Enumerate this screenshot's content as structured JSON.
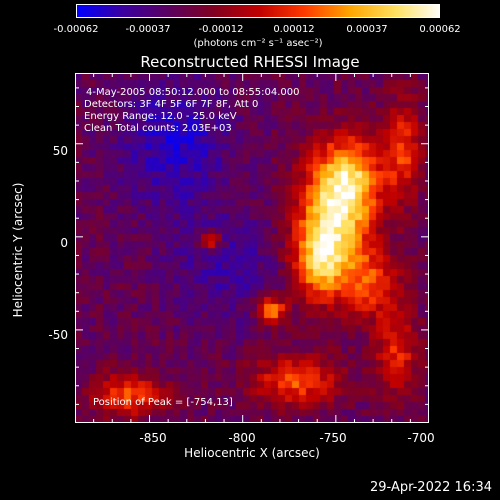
{
  "colorbar": {
    "stops": [
      "#0000ff",
      "#3a00a0",
      "#5a0060",
      "#800020",
      "#c00000",
      "#ff3a00",
      "#ffa500",
      "#ffe060",
      "#ffffff"
    ],
    "tick_labels": [
      "-0.00062",
      "-0.00037",
      "-0.00012",
      "0.00012",
      "0.00037",
      "0.00062"
    ],
    "unit_label": "(photons cm⁻² s⁻¹ asec⁻²)"
  },
  "chart_data": {
    "type": "heatmap",
    "title": "Reconstructed RHESSI Image",
    "xlabel": "Heliocentric X (arcsec)",
    "ylabel": "Heliocentric Y (arcsec)",
    "xlim": [
      -890,
      -700
    ],
    "ylim": [
      -100,
      88
    ],
    "zlim": [
      -0.00062,
      0.00062
    ],
    "xticks": [
      -850,
      -800,
      -750,
      -700
    ],
    "yticks": [
      50,
      0,
      -50
    ],
    "peak": [
      -754,
      13
    ],
    "annotations": {
      "time": "4-May-2005 08:50:12.000 to 08:55:04.000",
      "detectors": "Detectors: 3F 4F 5F 6F 7F 8F, Att 0",
      "energy": "Energy Range: 12.0 - 25.0 keV",
      "clean": "Clean     Total counts: 2.03E+03",
      "peak_text": "Position of Peak = [-754,13]"
    }
  },
  "footer": {
    "date": "29-Apr-2022 16:34"
  }
}
